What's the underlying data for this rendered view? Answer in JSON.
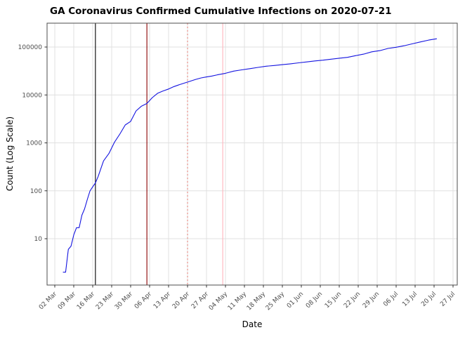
{
  "chart_data": {
    "type": "line",
    "title": "GA Coronavirus Confirmed Cumulative Infections on 2020-07-21",
    "xlabel": "Date",
    "ylabel": "Count (Log Scale)",
    "y_scale": "log10",
    "grid": {
      "show": true,
      "color": "#e0e0e0"
    },
    "panel_border_color": "#4d4d4d",
    "background": "#ffffff",
    "y_ticks": [
      {
        "value": 10,
        "label": "10"
      },
      {
        "value": 100,
        "label": "100"
      },
      {
        "value": 1000,
        "label": "1000"
      },
      {
        "value": 10000,
        "label": "10000"
      },
      {
        "value": 100000,
        "label": "100000"
      }
    ],
    "x_ticks": [
      {
        "date": "2020-03-02",
        "label": "02 Mar"
      },
      {
        "date": "2020-03-09",
        "label": "09 Mar"
      },
      {
        "date": "2020-03-16",
        "label": "16 Mar"
      },
      {
        "date": "2020-03-23",
        "label": "23 Mar"
      },
      {
        "date": "2020-03-30",
        "label": "30 Mar"
      },
      {
        "date": "2020-04-06",
        "label": "06 Apr"
      },
      {
        "date": "2020-04-13",
        "label": "13 Apr"
      },
      {
        "date": "2020-04-20",
        "label": "20 Apr"
      },
      {
        "date": "2020-04-27",
        "label": "27 Apr"
      },
      {
        "date": "2020-05-04",
        "label": "04 May"
      },
      {
        "date": "2020-05-11",
        "label": "11 May"
      },
      {
        "date": "2020-05-18",
        "label": "18 May"
      },
      {
        "date": "2020-05-25",
        "label": "25 May"
      },
      {
        "date": "2020-06-01",
        "label": "01 Jun"
      },
      {
        "date": "2020-06-08",
        "label": "08 Jun"
      },
      {
        "date": "2020-06-15",
        "label": "15 Jun"
      },
      {
        "date": "2020-06-22",
        "label": "22 Jun"
      },
      {
        "date": "2020-06-29",
        "label": "29 Jun"
      },
      {
        "date": "2020-07-06",
        "label": "06 Jul"
      },
      {
        "date": "2020-07-13",
        "label": "13 Jul"
      },
      {
        "date": "2020-07-20",
        "label": "20 Jul"
      },
      {
        "date": "2020-07-27",
        "label": "27 Jul"
      }
    ],
    "reference_lines": [
      {
        "date": "2020-03-17",
        "color": "#000000",
        "style": "solid"
      },
      {
        "date": "2020-04-05",
        "color": "#8B0000",
        "style": "solid"
      },
      {
        "date": "2020-04-20",
        "color": "#E8837B",
        "style": "dotted"
      },
      {
        "date": "2020-05-03",
        "color": "#FFB3BC",
        "style": "solid"
      }
    ],
    "series": [
      {
        "name": "confirmed-cumulative-infections",
        "color": "#1414E0",
        "dates": [
          "2020-03-05",
          "2020-03-06",
          "2020-03-07",
          "2020-03-08",
          "2020-03-09",
          "2020-03-10",
          "2020-03-11",
          "2020-03-12",
          "2020-03-13",
          "2020-03-14",
          "2020-03-15",
          "2020-03-16",
          "2020-03-17",
          "2020-03-18",
          "2020-03-20",
          "2020-03-22",
          "2020-03-24",
          "2020-03-26",
          "2020-03-28",
          "2020-03-30",
          "2020-04-01",
          "2020-04-03",
          "2020-04-05",
          "2020-04-07",
          "2020-04-09",
          "2020-04-11",
          "2020-04-13",
          "2020-04-15",
          "2020-04-17",
          "2020-04-19",
          "2020-04-21",
          "2020-04-23",
          "2020-04-25",
          "2020-04-27",
          "2020-04-29",
          "2020-05-01",
          "2020-05-04",
          "2020-05-07",
          "2020-05-10",
          "2020-05-13",
          "2020-05-16",
          "2020-05-19",
          "2020-05-22",
          "2020-05-25",
          "2020-05-28",
          "2020-05-31",
          "2020-06-03",
          "2020-06-06",
          "2020-06-09",
          "2020-06-12",
          "2020-06-15",
          "2020-06-18",
          "2020-06-21",
          "2020-06-24",
          "2020-06-27",
          "2020-06-30",
          "2020-07-03",
          "2020-07-06",
          "2020-07-09",
          "2020-07-12",
          "2020-07-15",
          "2020-07-18",
          "2020-07-21"
        ],
        "values": [
          2,
          2,
          6,
          7,
          12,
          17,
          17,
          31,
          42,
          66,
          99,
          121,
          146,
          199,
          420,
          600,
          1026,
          1525,
          2366,
          2809,
          4638,
          5831,
          6647,
          8818,
          10885,
          12159,
          13315,
          14987,
          16369,
          17841,
          19398,
          21102,
          22695,
          23773,
          24854,
          26264,
          28331,
          31439,
          33441,
          35427,
          37552,
          39801,
          41218,
          42838,
          44638,
          46869,
          48894,
          51309,
          53249,
          55783,
          58414,
          60912,
          65928,
          71095,
          79417,
          84237,
          93319,
          98949,
          106727,
          116926,
          127834,
          139880,
          148988
        ]
      }
    ]
  }
}
